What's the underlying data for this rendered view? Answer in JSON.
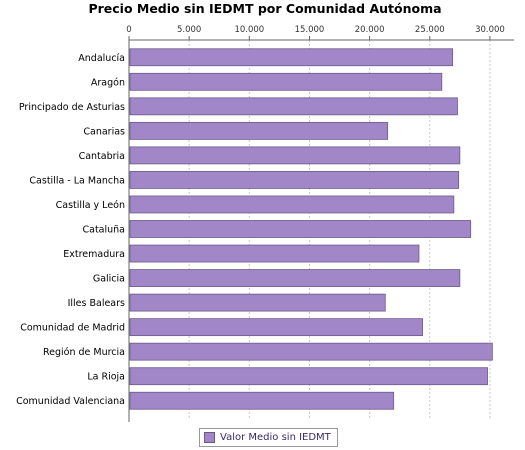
{
  "chart_data": {
    "type": "bar",
    "orientation": "horizontal",
    "title": "Precio Medio sin IEDMT por Comunidad Autónoma",
    "categories": [
      "Andalucía",
      "Aragón",
      "Principado de Asturias",
      "Canarias",
      "Cantabria",
      "Castilla - La Mancha",
      "Castilla y León",
      "Cataluña",
      "Extremadura",
      "Galicia",
      "Illes Balears",
      "Comunidad de Madrid",
      "Región de Murcia",
      "La Rioja",
      "Comunidad Valenciana"
    ],
    "series": [
      {
        "name": "Valor Medio sin IEDMT",
        "color": "#a287c8",
        "values": [
          26900,
          26000,
          27300,
          21500,
          27500,
          27400,
          27000,
          28400,
          24100,
          27500,
          21300,
          24400,
          30200,
          29800,
          22000
        ]
      }
    ],
    "xlim": [
      0,
      32000
    ],
    "tick_values": [
      0,
      5000,
      10000,
      15000,
      20000,
      25000,
      30000
    ],
    "tick_labels": [
      "0",
      "5.000",
      "10.000",
      "15.000",
      "20.000",
      "25.000",
      "30.000"
    ],
    "xaxis_position": "top",
    "grid": true,
    "legend_position": "bottom"
  }
}
